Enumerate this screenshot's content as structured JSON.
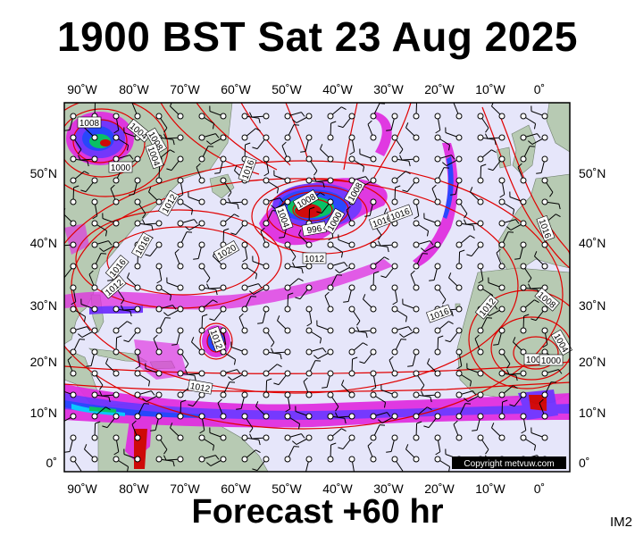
{
  "header": {
    "title": "1900 BST Sat 23 Aug 2025",
    "subtitle": "Forecast +60 hr",
    "product_code": "IM2"
  },
  "map": {
    "lon_labels": [
      "90˚W",
      "80˚W",
      "70˚W",
      "60˚W",
      "50˚W",
      "40˚W",
      "30˚W",
      "20˚W",
      "10˚W",
      "0˚"
    ],
    "lat_labels": [
      "50˚N",
      "40˚N",
      "30˚N",
      "20˚N",
      "10˚N",
      "0˚"
    ],
    "isobar_labels": [
      "1008",
      "1004",
      "1000",
      "1008",
      "1004",
      "1016",
      "1012",
      "1016",
      "1020",
      "1016",
      "1012",
      "1016",
      "1016",
      "1016",
      "1012",
      "1008",
      "1004",
      "996",
      "1000",
      "1008",
      "1012",
      "1016",
      "1012",
      "1008",
      "1004",
      "1004",
      "1000",
      "1012"
    ],
    "copyright": "Copyright metvuw.com",
    "colors": {
      "ocean": "#e6e6fa",
      "land": "#b7cab3",
      "isobar": "#e00000",
      "rain_light": "#e030e0",
      "rain_moderate": "#7030ff",
      "rain_heavy": "#2040ff",
      "rain_very_heavy": "#00c8ff",
      "rain_extreme": "#00c060",
      "rain_max": "#d00000",
      "wind_barb": "#000000"
    }
  }
}
